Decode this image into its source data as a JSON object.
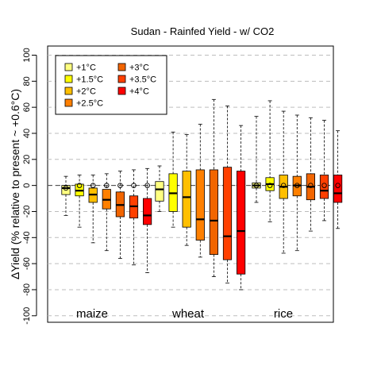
{
  "chart_data": {
    "type": "boxplot",
    "title": "Sudan - Rainfed Yield - w/ CO2",
    "ylabel": "ΔYield (% relative to present ~ +0.6°C)",
    "xlabel": "",
    "ylim": [
      -105,
      107
    ],
    "yticks": [
      -100,
      -80,
      -60,
      -40,
      -20,
      0,
      20,
      40,
      60,
      80,
      100
    ],
    "grid": true,
    "legend_position": "top-left",
    "series": [
      {
        "name": "+1°C",
        "color": "#FFFF80"
      },
      {
        "name": "+1.5°C",
        "color": "#FFFF00"
      },
      {
        "name": "+2°C",
        "color": "#FFBF00"
      },
      {
        "name": "+2.5°C",
        "color": "#FF8000"
      },
      {
        "name": "+3°C",
        "color": "#F26500"
      },
      {
        "name": "+3.5°C",
        "color": "#FF4000"
      },
      {
        "name": "+4°C",
        "color": "#FF0000"
      }
    ],
    "groups": [
      {
        "label": "maize",
        "boxes": [
          {
            "min": -23,
            "q1": -7,
            "median": -2,
            "q3": 0,
            "max": 7,
            "mean": -2
          },
          {
            "min": -32,
            "q1": -8,
            "median": -4,
            "q3": 1,
            "max": 8,
            "mean": 0
          },
          {
            "min": -44,
            "q1": -13,
            "median": -7,
            "q3": -2,
            "max": 8,
            "mean": 0
          },
          {
            "min": -50,
            "q1": -18,
            "median": -11,
            "q3": -3,
            "max": 9,
            "mean": 0
          },
          {
            "min": -56,
            "q1": -24,
            "median": -15,
            "q3": -5,
            "max": 11,
            "mean": 0
          },
          {
            "min": -61,
            "q1": -25,
            "median": -16,
            "q3": -8,
            "max": 12,
            "mean": 0
          },
          {
            "min": -67,
            "q1": -30,
            "median": -23,
            "q3": -10,
            "max": 13,
            "mean": 0
          }
        ]
      },
      {
        "label": "wheat",
        "boxes": [
          {
            "min": -20,
            "q1": -12,
            "median": -3,
            "q3": 3,
            "max": 15,
            "mean": null
          },
          {
            "min": -32,
            "q1": -20,
            "median": -6,
            "q3": 9,
            "max": 41,
            "mean": null
          },
          {
            "min": -46,
            "q1": -32,
            "median": -9,
            "q3": 11,
            "max": 39,
            "mean": null
          },
          {
            "min": -55,
            "q1": -42,
            "median": -26,
            "q3": 12,
            "max": 47,
            "mean": null
          },
          {
            "min": -70,
            "q1": -53,
            "median": -27,
            "q3": 12,
            "max": 66,
            "mean": null
          },
          {
            "min": -75,
            "q1": -57,
            "median": -39,
            "q3": 14,
            "max": 61,
            "mean": null
          },
          {
            "min": -80,
            "q1": -68,
            "median": -35,
            "q3": 11,
            "max": 46,
            "mean": null
          }
        ]
      },
      {
        "label": "rice",
        "boxes": [
          {
            "min": -13,
            "q1": -2,
            "median": 0,
            "q3": 2,
            "max": 53,
            "mean": 0
          },
          {
            "min": -28,
            "q1": -4,
            "median": 1,
            "q3": 6,
            "max": 65,
            "mean": 0
          },
          {
            "min": -52,
            "q1": -10,
            "median": -1,
            "q3": 8,
            "max": 57,
            "mean": 0
          },
          {
            "min": -50,
            "q1": -8,
            "median": 0,
            "q3": 7,
            "max": 54,
            "mean": 0
          },
          {
            "min": -35,
            "q1": -11,
            "median": -1,
            "q3": 9,
            "max": 52,
            "mean": 0
          },
          {
            "min": -27,
            "q1": -10,
            "median": -4,
            "q3": 8,
            "max": 50,
            "mean": 0
          },
          {
            "min": -33,
            "q1": -13,
            "median": -6,
            "q3": 8,
            "max": 42,
            "mean": 0
          }
        ]
      }
    ]
  }
}
